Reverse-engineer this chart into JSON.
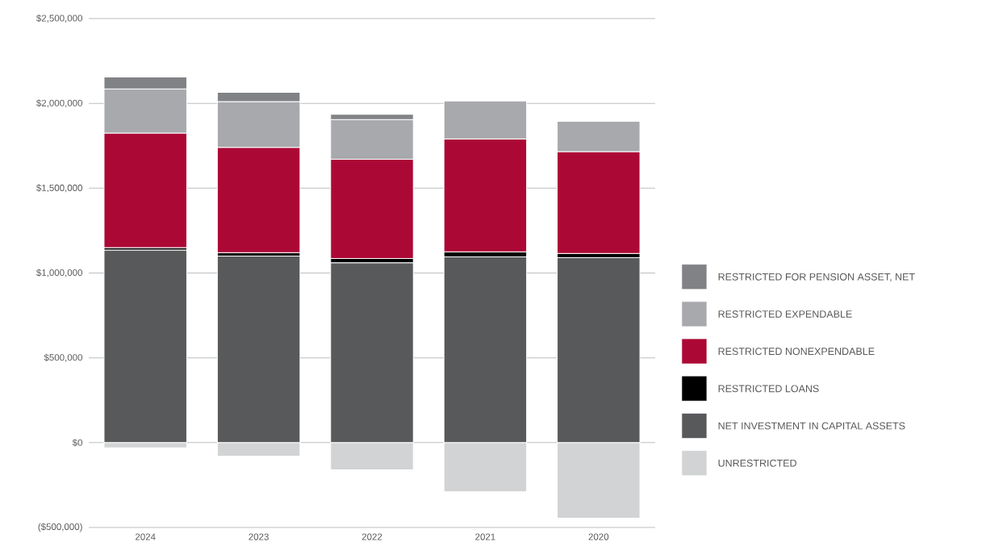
{
  "chart_data": {
    "type": "bar",
    "stacked": true,
    "categories": [
      "2024",
      "2023",
      "2022",
      "2021",
      "2020"
    ],
    "series": [
      {
        "name": "UNRESTRICTED",
        "color": "#d1d3d4",
        "values": [
          -30000,
          -80000,
          -160000,
          -290000,
          -445000
        ]
      },
      {
        "name": "NET INVESTMENT IN CAPITAL ASSETS",
        "color": "#58595b",
        "values": [
          1135000,
          1100000,
          1060000,
          1095000,
          1090000
        ]
      },
      {
        "name": "RESTRICTED LOANS",
        "color": "#000000",
        "values": [
          15000,
          20000,
          25000,
          30000,
          25000
        ]
      },
      {
        "name": "RESTRICTED NONEXPENDABLE",
        "color": "#ac0836",
        "values": [
          675000,
          620000,
          585000,
          665000,
          600000
        ]
      },
      {
        "name": "RESTRICTED EXPENDABLE",
        "color": "#a7a9ac",
        "values": [
          260000,
          270000,
          235000,
          225000,
          180000
        ]
      },
      {
        "name": "RESTRICTED FOR PENSION ASSET, NET",
        "color": "#808285",
        "values": [
          70000,
          55000,
          30000,
          0,
          0
        ]
      }
    ],
    "ylim": [
      -500000,
      2500000
    ],
    "yticks": [
      {
        "value": -500000,
        "label": "($500,000)"
      },
      {
        "value": 0,
        "label": "$0"
      },
      {
        "value": 500000,
        "label": "$500,000"
      },
      {
        "value": 1000000,
        "label": "$1,000,000"
      },
      {
        "value": 1500000,
        "label": "$1,500,000"
      },
      {
        "value": 2000000,
        "label": "$2,000,000"
      },
      {
        "value": 2500000,
        "label": "$2,500,000"
      }
    ],
    "grid": "y",
    "legend": "right"
  }
}
